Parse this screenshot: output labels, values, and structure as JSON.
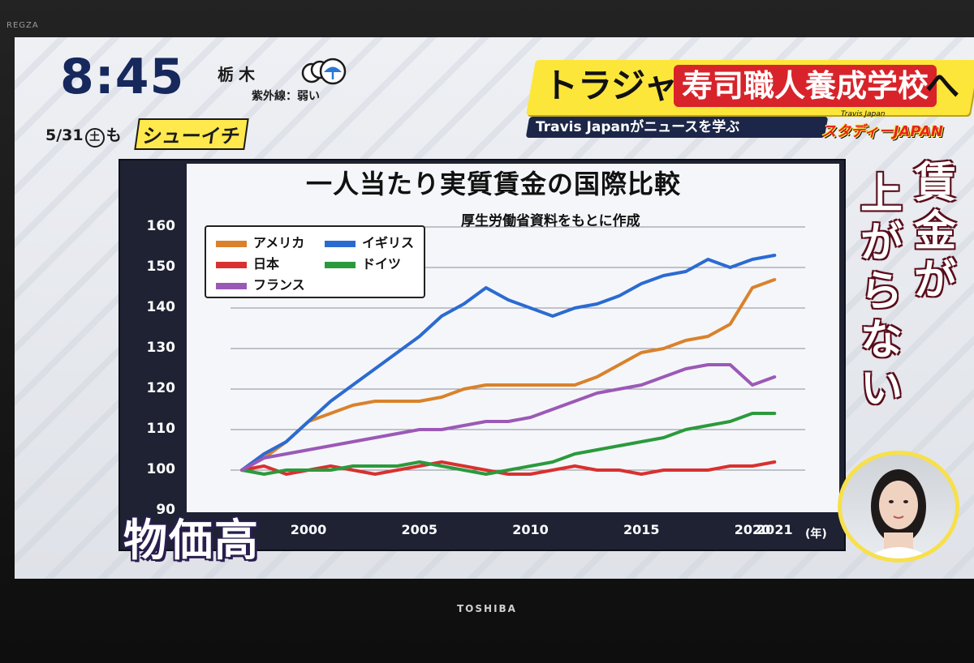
{
  "tv": {
    "brand": "REGZA",
    "maker": "TOSHIBA"
  },
  "broadcast": {
    "time": "8:45",
    "region": "栃木",
    "uv": "紫外線：弱い",
    "date": "5/31",
    "weekday": "土",
    "date_suffix": "も",
    "program": "シューイチ",
    "weather_icons": [
      "cloud-icon",
      "umbrella-icon"
    ]
  },
  "banner": {
    "headline_part1": "トラジャ",
    "headline_part2": "寿司職人養成学校",
    "headline_part3": "へ",
    "subhead": "Travis Japanがニュースを学ぶ",
    "segment_small": "Travis Japan",
    "segment_main": "スタディーJAPAN"
  },
  "side_caption": {
    "col1": [
      "賃",
      "金"
    ],
    "col2": [
      "上",
      "が",
      "ら",
      "な",
      "い"
    ],
    "linker": "が"
  },
  "bottom_caption": "物価高",
  "colors": {
    "america": "#d9822b",
    "uk": "#2b6bd1",
    "japan": "#d8312f",
    "germany": "#2b9a3c",
    "france": "#9b59b6",
    "banner_yellow": "#fde63a",
    "banner_red": "#d8232a"
  },
  "chart_data": {
    "type": "line",
    "title": "一人当たり実質賃金の国際比較",
    "subtitle": "厚生労働省資料をもとに作成",
    "xlabel": "(年)",
    "ylabel": "",
    "x_tick_labels": [
      "2000",
      "2005",
      "2010",
      "2015",
      "2020",
      "2021"
    ],
    "y_tick_labels": [
      "90",
      "100",
      "110",
      "120",
      "130",
      "140",
      "150",
      "160"
    ],
    "ylim": [
      90,
      160
    ],
    "legend": {
      "position": "top-left",
      "entries": [
        "アメリカ",
        "イギリス",
        "日本",
        "ドイツ",
        "フランス"
      ]
    },
    "grid": true,
    "x": [
      1997,
      1998,
      1999,
      2000,
      2001,
      2002,
      2003,
      2004,
      2005,
      2006,
      2007,
      2008,
      2009,
      2010,
      2011,
      2012,
      2013,
      2014,
      2015,
      2016,
      2017,
      2018,
      2019,
      2020,
      2021
    ],
    "series": [
      {
        "name": "アメリカ",
        "color": "#d9822b",
        "values": [
          100,
          103,
          107,
          112,
          114,
          116,
          117,
          117,
          117,
          118,
          120,
          121,
          121,
          121,
          121,
          121,
          123,
          126,
          129,
          130,
          132,
          133,
          136,
          145,
          147
        ]
      },
      {
        "name": "イギリス",
        "color": "#2b6bd1",
        "values": [
          100,
          104,
          107,
          112,
          117,
          121,
          125,
          129,
          133,
          138,
          141,
          145,
          142,
          140,
          138,
          140,
          141,
          143,
          146,
          148,
          149,
          152,
          150,
          152,
          153
        ]
      },
      {
        "name": "日本",
        "color": "#d8312f",
        "values": [
          100,
          101,
          99,
          100,
          101,
          100,
          99,
          100,
          101,
          102,
          101,
          100,
          99,
          99,
          100,
          101,
          100,
          100,
          99,
          100,
          100,
          100,
          101,
          101,
          102
        ]
      },
      {
        "name": "ドイツ",
        "color": "#2b9a3c",
        "values": [
          100,
          99,
          100,
          100,
          100,
          101,
          101,
          101,
          102,
          101,
          100,
          99,
          100,
          101,
          102,
          104,
          105,
          106,
          107,
          108,
          110,
          111,
          112,
          114,
          114
        ]
      },
      {
        "name": "フランス",
        "color": "#9b59b6",
        "values": [
          100,
          103,
          104,
          105,
          106,
          107,
          108,
          109,
          110,
          110,
          111,
          112,
          112,
          113,
          115,
          117,
          119,
          120,
          121,
          123,
          125,
          126,
          126,
          121,
          123
        ]
      }
    ]
  }
}
